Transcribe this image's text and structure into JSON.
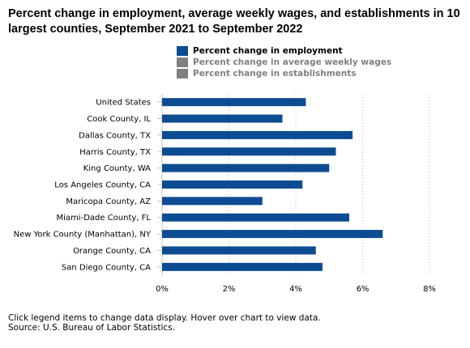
{
  "title": "Percent change in employment, average weekly wages, and establishments in 10 largest counties, September 2021 to September 2022",
  "legend": [
    {
      "label": "Percent change in employment",
      "color": "#0d4c92",
      "active": true
    },
    {
      "label": "Percent change in average weekly wages",
      "color": "#808080",
      "active": false
    },
    {
      "label": "Percent change in establishments",
      "color": "#808080",
      "active": false
    }
  ],
  "footer": {
    "note": "Click legend items to change data display. Hover over chart to view data.",
    "source": "Source: U.S. Bureau of Labor Statistics."
  },
  "chart_data": {
    "type": "bar",
    "orientation": "horizontal",
    "categories": [
      "United States",
      "Cook County, IL",
      "Dallas County, TX",
      "Harris County, TX",
      "King County, WA",
      "Los Angeles County, CA",
      "Maricopa County, AZ",
      "Miami-Dade County, FL",
      "New York County (Manhattan), NY",
      "Orange County, CA",
      "San Diego County, CA"
    ],
    "series": [
      {
        "name": "Percent change in employment",
        "values": [
          4.3,
          3.6,
          5.7,
          5.2,
          5.0,
          4.2,
          3.0,
          5.6,
          6.6,
          4.6,
          4.8
        ]
      }
    ],
    "xlim": [
      0,
      8
    ],
    "ticks": [
      0,
      2,
      4,
      6,
      8
    ],
    "tick_labels": [
      "0%",
      "2%",
      "4%",
      "6%",
      "8%"
    ],
    "grid": "vertical dotted",
    "bar_color": "#0d4c92",
    "legend_position": "top"
  }
}
